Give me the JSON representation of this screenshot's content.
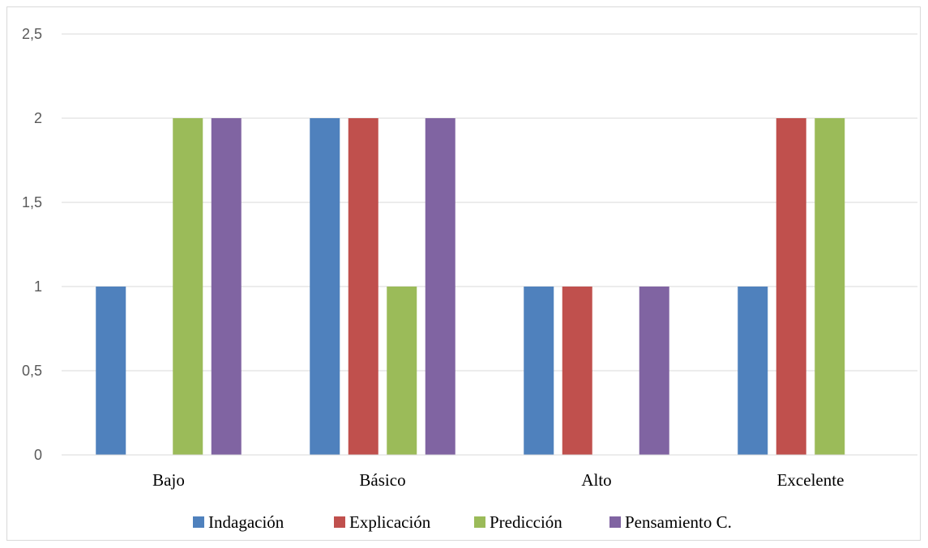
{
  "chart_data": {
    "type": "bar",
    "title": "",
    "xlabel": "",
    "ylabel": "",
    "categories": [
      "Bajo",
      "Básico",
      "Alto",
      "Excelente"
    ],
    "series": [
      {
        "name": "Indagación",
        "color": "#4f81bd",
        "values": [
          1,
          2,
          1,
          1
        ]
      },
      {
        "name": "Explicación",
        "color": "#c0504d",
        "values": [
          0,
          2,
          1,
          2
        ]
      },
      {
        "name": "Predicción",
        "color": "#9bbb59",
        "values": [
          2,
          1,
          0,
          2
        ]
      },
      {
        "name": "Pensamiento C.",
        "color": "#8064a2",
        "values": [
          2,
          2,
          1,
          0
        ]
      }
    ],
    "ylim": [
      0,
      2.5
    ],
    "yticks": [
      "0",
      "0,5",
      "1",
      "1,5",
      "2",
      "2,5"
    ],
    "grid": true,
    "legend_position": "bottom"
  }
}
